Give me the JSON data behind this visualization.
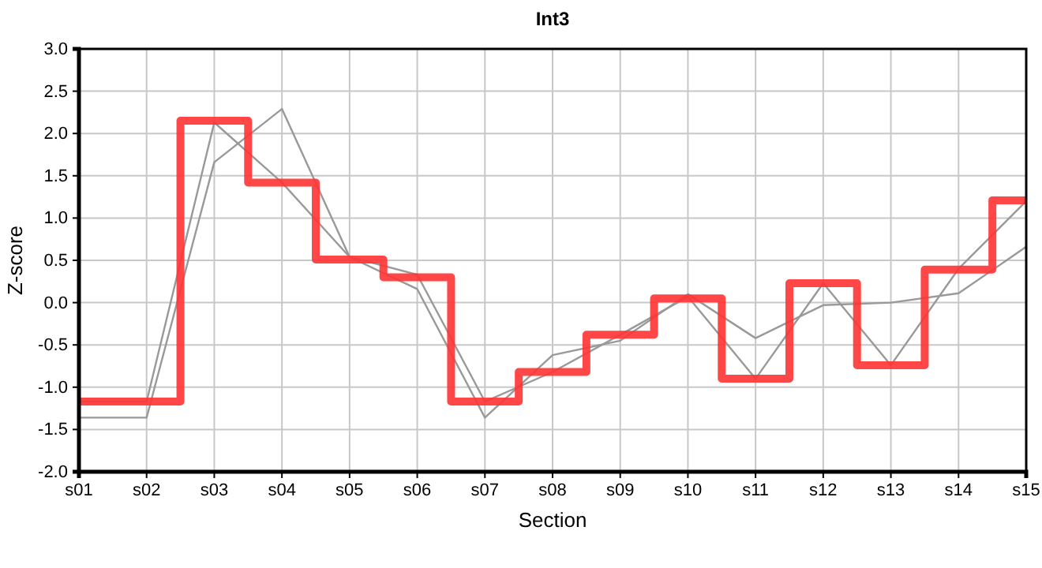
{
  "chart_data": {
    "type": "line",
    "title": "Int3",
    "xlabel": "Section",
    "ylabel": "Z-score",
    "categories": [
      "s01",
      "s02",
      "s03",
      "s04",
      "s05",
      "s06",
      "s07",
      "s08",
      "s09",
      "s10",
      "s11",
      "s12",
      "s13",
      "s14",
      "s15"
    ],
    "series": [
      {
        "color": "#999999",
        "values": [
          -1.36,
          -1.36,
          1.66,
          2.29,
          0.54,
          0.16,
          -1.36,
          -0.62,
          -0.45,
          0.1,
          -0.42,
          -0.03,
          0.0,
          0.11,
          0.66
        ]
      },
      {
        "color": "#999999",
        "values": [
          -1.17,
          -1.17,
          2.13,
          1.42,
          0.54,
          0.33,
          -1.17,
          -0.82,
          -0.38,
          0.07,
          -0.9,
          0.23,
          -0.74,
          0.4,
          1.2
        ]
      },
      {
        "type": "step",
        "color": "#ff3333",
        "values": [
          -1.17,
          -1.17,
          2.15,
          1.42,
          0.51,
          0.3,
          -1.17,
          -0.82,
          -0.38,
          0.05,
          -0.9,
          0.23,
          -0.74,
          0.39,
          1.21
        ]
      }
    ],
    "ylim": [
      -2,
      3
    ],
    "yticks": [
      {
        "value": -2,
        "label": "-2.0"
      },
      {
        "value": -1.5,
        "label": "-1.5"
      },
      {
        "value": -1,
        "label": "-1.0"
      },
      {
        "value": -0.5,
        "label": "-0.5"
      },
      {
        "value": 0,
        "label": "0.0"
      },
      {
        "value": 0.5,
        "label": "0.5"
      },
      {
        "value": 1,
        "label": "1.0"
      },
      {
        "value": 1.5,
        "label": "1.5"
      },
      {
        "value": 2,
        "label": "2.0"
      },
      {
        "value": 2.5,
        "label": "2.5"
      },
      {
        "value": 3,
        "label": "3.0"
      }
    ],
    "grid": true,
    "marker": "none",
    "line_style": "solid"
  }
}
